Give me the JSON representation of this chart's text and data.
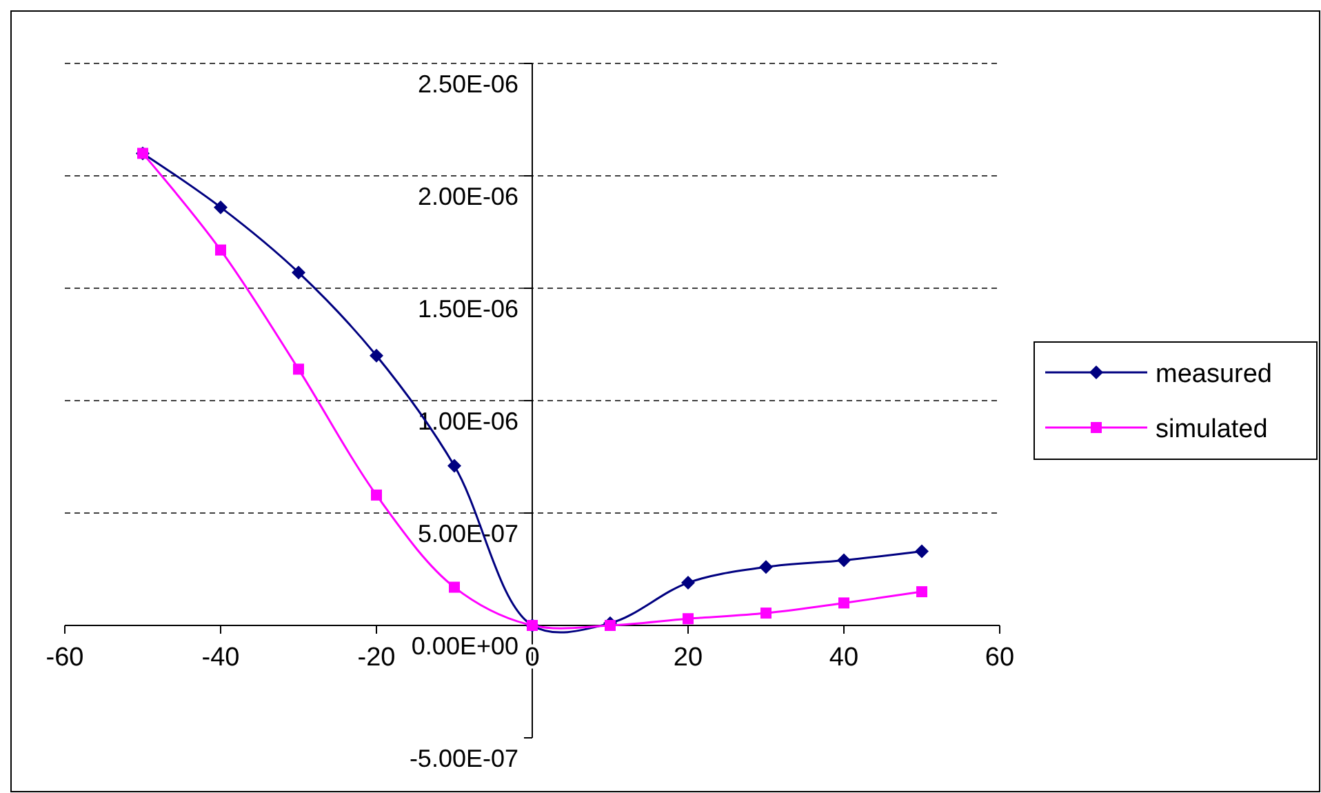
{
  "chart_data": {
    "type": "line",
    "x": [
      -50,
      -40,
      -30,
      -20,
      -10,
      0,
      10,
      20,
      30,
      40,
      50
    ],
    "series": [
      {
        "name": "measured",
        "color": "#000080",
        "marker": "diamond",
        "values": [
          2.1e-06,
          1.86e-06,
          1.57e-06,
          1.2e-06,
          7.1e-07,
          0,
          1e-08,
          1.9e-07,
          2.6e-07,
          2.9e-07,
          3.3e-07
        ]
      },
      {
        "name": "simulated",
        "color": "#ff00ff",
        "marker": "square",
        "values": [
          2.1e-06,
          1.67e-06,
          1.14e-06,
          5.8e-07,
          1.7e-07,
          0,
          0,
          3e-08,
          5.5e-08,
          1e-07,
          1.5e-07
        ]
      }
    ],
    "xlim": [
      -60,
      60
    ],
    "xticks": [
      -60,
      -40,
      -20,
      0,
      20,
      40,
      60
    ],
    "ylim": [
      -5e-07,
      2.5e-06
    ],
    "yticks": [
      {
        "value": -5e-07,
        "label": "-5.00E-07"
      },
      {
        "value": 0,
        "label": "0.00E+00"
      },
      {
        "value": 5e-07,
        "label": "5.00E-07"
      },
      {
        "value": 1e-06,
        "label": "1.00E-06"
      },
      {
        "value": 1.5e-06,
        "label": "1.50E-06"
      },
      {
        "value": 2e-06,
        "label": "2.00E-06"
      },
      {
        "value": 2.5e-06,
        "label": "2.50E-06"
      }
    ],
    "grid": "y",
    "legend": "right",
    "line_style": "solid"
  }
}
